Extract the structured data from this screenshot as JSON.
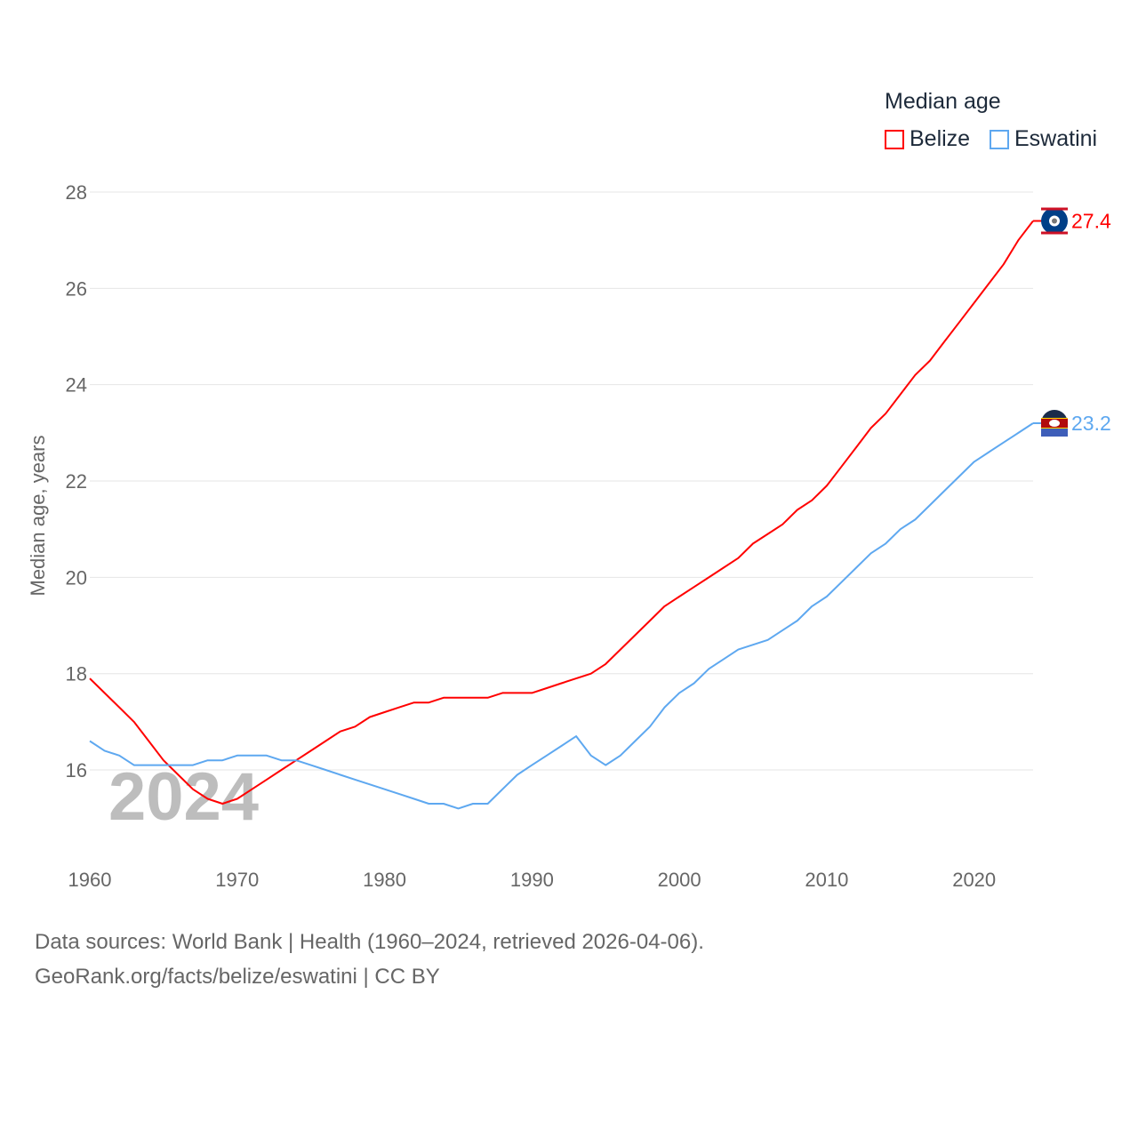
{
  "chart_data": {
    "type": "line",
    "title": "",
    "xlabel": "",
    "ylabel": "Median age, years",
    "xlim": [
      1960,
      2024
    ],
    "ylim": [
      15,
      28
    ],
    "x_ticks": [
      1960,
      1970,
      1980,
      1990,
      2000,
      2010,
      2020
    ],
    "y_ticks": [
      16,
      18,
      20,
      22,
      24,
      26,
      28
    ],
    "grid": true,
    "legend_title": "Median age",
    "legend_placement": "top-right",
    "year_watermark": "2024",
    "x": [
      1960,
      1961,
      1962,
      1963,
      1964,
      1965,
      1966,
      1967,
      1968,
      1969,
      1970,
      1971,
      1972,
      1973,
      1974,
      1975,
      1976,
      1977,
      1978,
      1979,
      1980,
      1981,
      1982,
      1983,
      1984,
      1985,
      1986,
      1987,
      1988,
      1989,
      1990,
      1991,
      1992,
      1993,
      1994,
      1995,
      1996,
      1997,
      1998,
      1999,
      2000,
      2001,
      2002,
      2003,
      2004,
      2005,
      2006,
      2007,
      2008,
      2009,
      2010,
      2011,
      2012,
      2013,
      2014,
      2015,
      2016,
      2017,
      2018,
      2019,
      2020,
      2021,
      2022,
      2023,
      2024
    ],
    "series": [
      {
        "name": "Belize",
        "color": "#ff0000",
        "end_label": "27.4",
        "values": [
          17.9,
          17.6,
          17.3,
          17.0,
          16.6,
          16.2,
          15.9,
          15.6,
          15.4,
          15.3,
          15.4,
          15.6,
          15.8,
          16.0,
          16.2,
          16.4,
          16.6,
          16.8,
          16.9,
          17.1,
          17.2,
          17.3,
          17.4,
          17.4,
          17.5,
          17.5,
          17.5,
          17.5,
          17.6,
          17.6,
          17.6,
          17.7,
          17.8,
          17.9,
          18.0,
          18.2,
          18.5,
          18.8,
          19.1,
          19.4,
          19.6,
          19.8,
          20.0,
          20.2,
          20.4,
          20.7,
          20.9,
          21.1,
          21.4,
          21.6,
          21.9,
          22.3,
          22.7,
          23.1,
          23.4,
          23.8,
          24.2,
          24.5,
          24.9,
          25.3,
          25.7,
          26.1,
          26.5,
          27.0,
          27.4
        ]
      },
      {
        "name": "Eswatini",
        "color": "#5ea8f0",
        "end_label": "23.2",
        "values": [
          16.6,
          16.4,
          16.3,
          16.1,
          16.1,
          16.1,
          16.1,
          16.1,
          16.2,
          16.2,
          16.3,
          16.3,
          16.3,
          16.2,
          16.2,
          16.1,
          16.0,
          15.9,
          15.8,
          15.7,
          15.6,
          15.5,
          15.4,
          15.3,
          15.3,
          15.2,
          15.3,
          15.3,
          15.6,
          15.9,
          16.1,
          16.3,
          16.5,
          16.7,
          16.3,
          16.1,
          16.3,
          16.6,
          16.9,
          17.3,
          17.6,
          17.8,
          18.1,
          18.3,
          18.5,
          18.6,
          18.7,
          18.9,
          19.1,
          19.4,
          19.6,
          19.9,
          20.2,
          20.5,
          20.7,
          21.0,
          21.2,
          21.5,
          21.8,
          22.1,
          22.4,
          22.6,
          22.8,
          23.0,
          23.2
        ]
      }
    ]
  },
  "footer": {
    "line1": "Data sources: World Bank | Health (1960–2024, retrieved 2026-04-06).",
    "line2": "GeoRank.org/facts/belize/eswatini | CC BY"
  }
}
